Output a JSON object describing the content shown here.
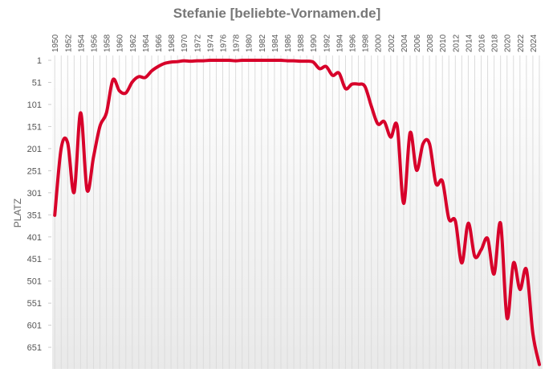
{
  "chart_data": {
    "type": "line",
    "title": "Stefanie [beliebte-Vornamen.de]",
    "y_label": "PLATZ",
    "x": [
      1950,
      1951,
      1952,
      1953,
      1954,
      1955,
      1956,
      1957,
      1958,
      1959,
      1960,
      1961,
      1962,
      1963,
      1964,
      1965,
      1966,
      1967,
      1968,
      1969,
      1970,
      1971,
      1972,
      1973,
      1974,
      1975,
      1976,
      1977,
      1978,
      1979,
      1980,
      1981,
      1982,
      1983,
      1984,
      1985,
      1986,
      1987,
      1988,
      1989,
      1990,
      1991,
      1992,
      1993,
      1994,
      1995,
      1996,
      1997,
      1998,
      1999,
      2000,
      2001,
      2002,
      2003,
      2004,
      2005,
      2006,
      2007,
      2008,
      2009,
      2010,
      2011,
      2012,
      2013,
      2014,
      2015,
      2016,
      2017,
      2018,
      2019,
      2020,
      2021,
      2022,
      2023,
      2024,
      2025
    ],
    "series": [
      {
        "name": "Stefanie",
        "color": "#d7002a",
        "values": [
          352,
          200,
          188,
          300,
          120,
          295,
          220,
          150,
          120,
          45,
          70,
          75,
          50,
          38,
          40,
          25,
          15,
          8,
          5,
          4,
          2,
          3,
          2,
          2,
          1,
          1,
          1,
          1,
          2,
          1,
          1,
          1,
          1,
          1,
          1,
          1,
          2,
          2,
          3,
          3,
          5,
          20,
          15,
          35,
          30,
          65,
          55,
          55,
          60,
          105,
          145,
          140,
          175,
          150,
          325,
          165,
          250,
          190,
          190,
          280,
          275,
          360,
          365,
          460,
          370,
          445,
          430,
          405,
          485,
          370,
          585,
          460,
          520,
          475,
          620,
          690
        ]
      }
    ],
    "xlim": [
      1949.6,
      2025.5
    ],
    "ylim": [
      -10,
      700
    ],
    "y_inverted": true,
    "xticks": [
      1950,
      1952,
      1954,
      1956,
      1958,
      1960,
      1962,
      1964,
      1966,
      1968,
      1970,
      1972,
      1974,
      1976,
      1978,
      1980,
      1982,
      1984,
      1986,
      1988,
      1990,
      1992,
      1994,
      1996,
      1998,
      2000,
      2002,
      2004,
      2006,
      2008,
      2010,
      2012,
      2014,
      2016,
      2018,
      2020,
      2022,
      2024
    ],
    "yticks": [
      1,
      51,
      101,
      151,
      201,
      251,
      301,
      351,
      401,
      451,
      501,
      551,
      601,
      651
    ],
    "grid": true
  }
}
